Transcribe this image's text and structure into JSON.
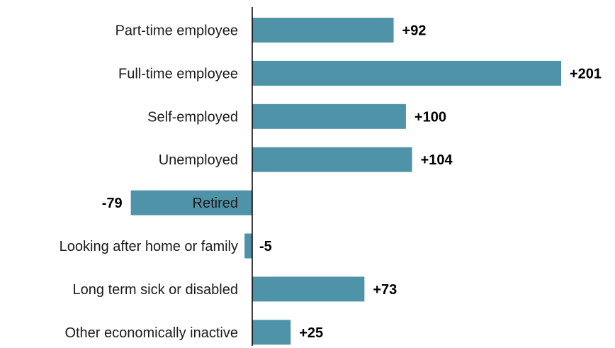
{
  "chart_data": {
    "type": "bar",
    "orientation": "horizontal",
    "title": "",
    "xlabel": "",
    "ylabel": "",
    "categories": [
      "Part-time employee",
      "Full-time employee",
      "Self-employed",
      "Unemployed",
      "Retired",
      "Looking after home or family",
      "Long term sick or disabled",
      "Other economically inactive"
    ],
    "values": [
      92,
      201,
      100,
      104,
      -79,
      -5,
      73,
      25
    ],
    "value_labels": [
      "+92",
      "+201",
      "+100",
      "+104",
      "-79",
      "-5",
      "+73",
      "+25"
    ],
    "xlim": [
      -79,
      201
    ],
    "grid": false,
    "legend": "none",
    "bar_color": "#4f93a8",
    "axis_color": "#000000"
  }
}
